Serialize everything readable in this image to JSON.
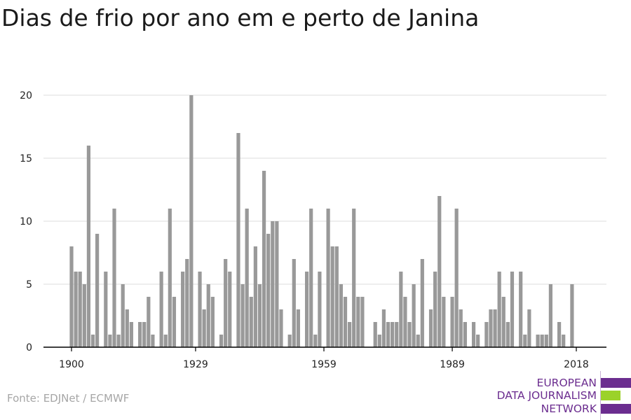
{
  "title": "Dias de frio por ano em e perto de Janina",
  "source": "Fonte: EDJNet / ECMWF",
  "logo": {
    "line1": "EUROPEAN",
    "line2": "DATA JOURNALISM",
    "line3": "NETWORK",
    "color_purple": "#6b2d8f",
    "color_green": "#9bd22a"
  },
  "colors": {
    "bar": "#999999",
    "grid": "#dddddd",
    "axis": "#000000"
  },
  "chart_data": {
    "type": "bar",
    "title": "Dias de frio por ano em e perto de Janina",
    "xlabel": "",
    "ylabel": "",
    "ylim": [
      0,
      20
    ],
    "yticks": [
      0,
      5,
      10,
      15,
      20
    ],
    "xticks": [
      1900,
      1929,
      1959,
      1989,
      2018
    ],
    "xlim": [
      1895,
      2023
    ],
    "grid": "horizontal",
    "x": [
      1900,
      1901,
      1902,
      1903,
      1904,
      1905,
      1906,
      1907,
      1908,
      1909,
      1910,
      1911,
      1912,
      1913,
      1914,
      1915,
      1916,
      1917,
      1918,
      1919,
      1920,
      1921,
      1922,
      1923,
      1924,
      1925,
      1926,
      1927,
      1928,
      1929,
      1930,
      1931,
      1932,
      1933,
      1934,
      1935,
      1936,
      1937,
      1938,
      1939,
      1940,
      1941,
      1942,
      1943,
      1944,
      1945,
      1946,
      1947,
      1948,
      1949,
      1950,
      1951,
      1952,
      1953,
      1954,
      1955,
      1956,
      1957,
      1958,
      1959,
      1960,
      1961,
      1962,
      1963,
      1964,
      1965,
      1966,
      1967,
      1968,
      1969,
      1970,
      1971,
      1972,
      1973,
      1974,
      1975,
      1976,
      1977,
      1978,
      1979,
      1980,
      1981,
      1982,
      1983,
      1984,
      1985,
      1986,
      1987,
      1988,
      1989,
      1990,
      1991,
      1992,
      1993,
      1994,
      1995,
      1996,
      1997,
      1998,
      1999,
      2000,
      2001,
      2002,
      2003,
      2004,
      2005,
      2006,
      2007,
      2008,
      2009,
      2010,
      2011,
      2012,
      2013,
      2014,
      2015,
      2016,
      2017,
      2018
    ],
    "values": [
      8,
      6,
      6,
      5,
      16,
      1,
      9,
      0,
      6,
      1,
      11,
      1,
      5,
      3,
      2,
      0,
      2,
      2,
      4,
      1,
      0,
      6,
      1,
      11,
      4,
      0,
      6,
      7,
      20,
      0,
      6,
      3,
      5,
      4,
      0,
      1,
      7,
      6,
      0,
      17,
      5,
      11,
      4,
      8,
      5,
      14,
      9,
      10,
      10,
      3,
      0,
      1,
      7,
      3,
      0,
      6,
      11,
      1,
      6,
      0,
      11,
      8,
      8,
      5,
      4,
      2,
      11,
      4,
      4,
      0,
      0,
      2,
      1,
      3,
      2,
      2,
      2,
      6,
      4,
      2,
      5,
      1,
      7,
      0,
      3,
      6,
      12,
      4,
      0,
      4,
      11,
      3,
      2,
      0,
      2,
      1,
      0,
      2,
      3,
      3,
      6,
      4,
      2,
      6,
      0,
      6,
      1,
      3,
      0,
      1,
      1,
      1,
      5,
      0,
      2,
      1,
      0,
      5,
      0
    ]
  }
}
